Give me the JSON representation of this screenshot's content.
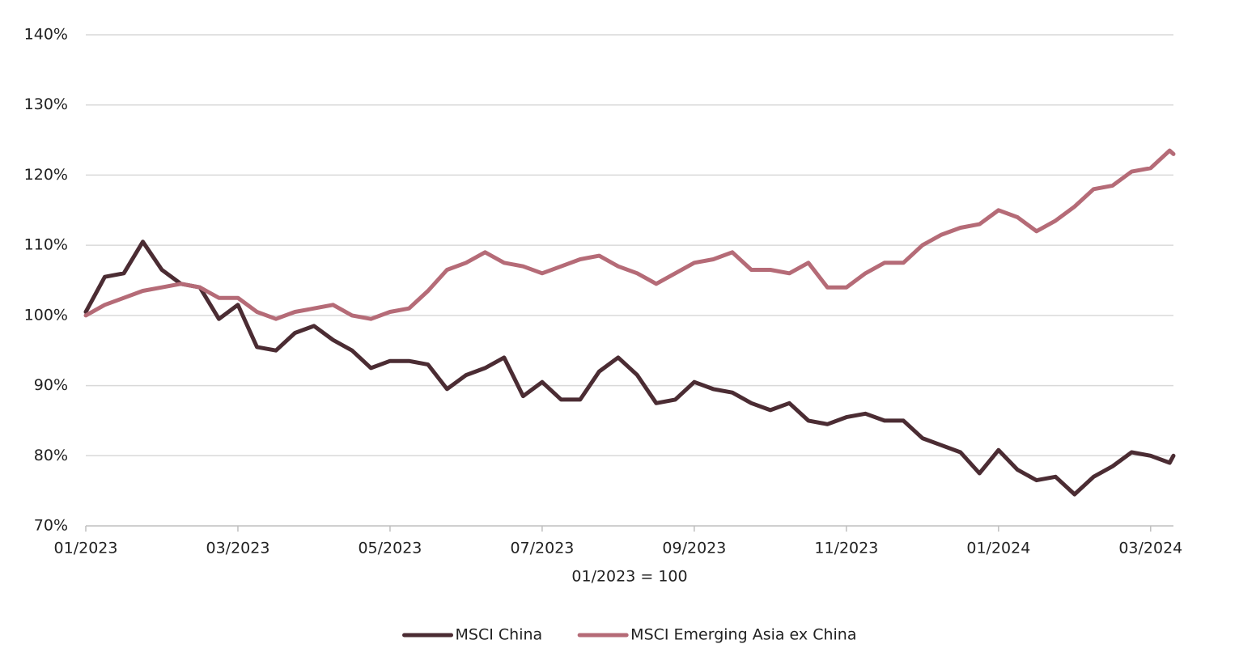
{
  "chart_data": {
    "type": "line",
    "xlabel": "01/2023 = 100",
    "x": [
      0,
      0.25,
      0.5,
      0.75,
      1,
      1.25,
      1.5,
      1.75,
      2,
      2.25,
      2.5,
      2.75,
      3,
      3.25,
      3.5,
      3.75,
      4,
      4.25,
      4.5,
      4.75,
      5,
      5.25,
      5.5,
      5.75,
      6,
      6.25,
      6.5,
      6.75,
      7,
      7.25,
      7.5,
      7.75,
      8,
      8.25,
      8.5,
      8.75,
      9,
      9.25,
      9.5,
      9.75,
      10,
      10.25,
      10.5,
      10.75,
      11,
      11.25,
      11.5,
      11.75,
      12,
      12.25,
      12.5,
      12.75,
      13,
      13.25,
      13.5,
      13.75,
      14,
      14.25,
      14.3
    ],
    "series": [
      {
        "name": "MSCI China",
        "color": "#4b2c33",
        "values": [
          100.5,
          105.5,
          106,
          110.5,
          106.5,
          104.5,
          104,
          99.5,
          101.5,
          95.5,
          95,
          97.5,
          98.5,
          96.5,
          95,
          92.5,
          93.5,
          93.5,
          93,
          89.5,
          91.5,
          92.5,
          94,
          88.5,
          90.5,
          88,
          88,
          92,
          94,
          91.5,
          87.5,
          88,
          90.5,
          89.5,
          89,
          87.5,
          86.5,
          87.5,
          85,
          84.5,
          85.5,
          86,
          85,
          85,
          82.5,
          81.5,
          80.5,
          77.5,
          80.8,
          78,
          76.5,
          77,
          74.5,
          77,
          78.5,
          80.5,
          80,
          79,
          80
        ]
      },
      {
        "name": "MSCI Emerging Asia ex China",
        "color": "#b56b77",
        "values": [
          100,
          101.5,
          102.5,
          103.5,
          104,
          104.5,
          104,
          102.5,
          102.5,
          100.5,
          99.5,
          100.5,
          101,
          101.5,
          100,
          99.5,
          100.5,
          101,
          103.5,
          106.5,
          107.5,
          109,
          107.5,
          107,
          106,
          107,
          108,
          108.5,
          107,
          106,
          104.5,
          106,
          107.5,
          108,
          109,
          106.5,
          106.5,
          106,
          107.5,
          104,
          104,
          106,
          107.5,
          107.5,
          110,
          111.5,
          112.5,
          113,
          115,
          114,
          112,
          113.5,
          115.5,
          118,
          118.5,
          120.5,
          121,
          123.5,
          123
        ]
      }
    ],
    "xlim": [
      0,
      14.3
    ],
    "xticks": [
      {
        "value": 0,
        "label": "01/2023"
      },
      {
        "value": 2,
        "label": "03/2023"
      },
      {
        "value": 4,
        "label": "05/2023"
      },
      {
        "value": 6,
        "label": "07/2023"
      },
      {
        "value": 8,
        "label": "09/2023"
      },
      {
        "value": 10,
        "label": "11/2023"
      },
      {
        "value": 12,
        "label": "01/2024"
      },
      {
        "value": 14,
        "label": "03/2024"
      }
    ],
    "ylim": [
      70,
      140
    ],
    "yticks": [
      {
        "value": 70,
        "label": "70%"
      },
      {
        "value": 80,
        "label": "80%"
      },
      {
        "value": 90,
        "label": "90%"
      },
      {
        "value": 100,
        "label": "100%"
      },
      {
        "value": 110,
        "label": "110%"
      },
      {
        "value": 120,
        "label": "120%"
      },
      {
        "value": 130,
        "label": "130%"
      },
      {
        "value": 140,
        "label": "140%"
      }
    ],
    "grid": true,
    "legend": "bottom"
  }
}
